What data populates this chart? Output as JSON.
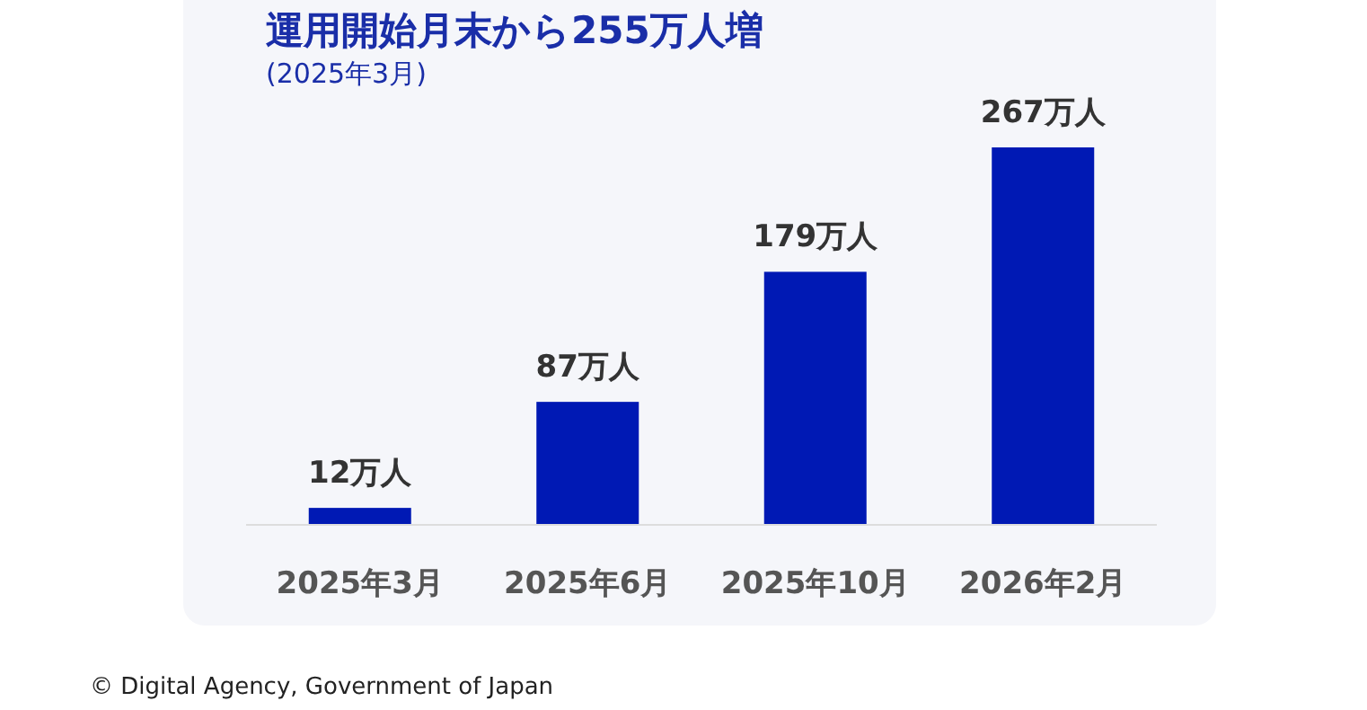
{
  "chart_data": {
    "type": "bar",
    "title": "運用開始月末から255万人増",
    "subtitle": "(2025年3月)",
    "categories": [
      "2025年3月",
      "2025年6月",
      "2025年10月",
      "2026年2月"
    ],
    "values": [
      12,
      87,
      179,
      267
    ],
    "value_labels": [
      "12万人",
      "87万人",
      "179万人",
      "267万人"
    ],
    "color": "#0019b4",
    "annotations": [
      "© Digital Agency, Government of Japan"
    ]
  }
}
